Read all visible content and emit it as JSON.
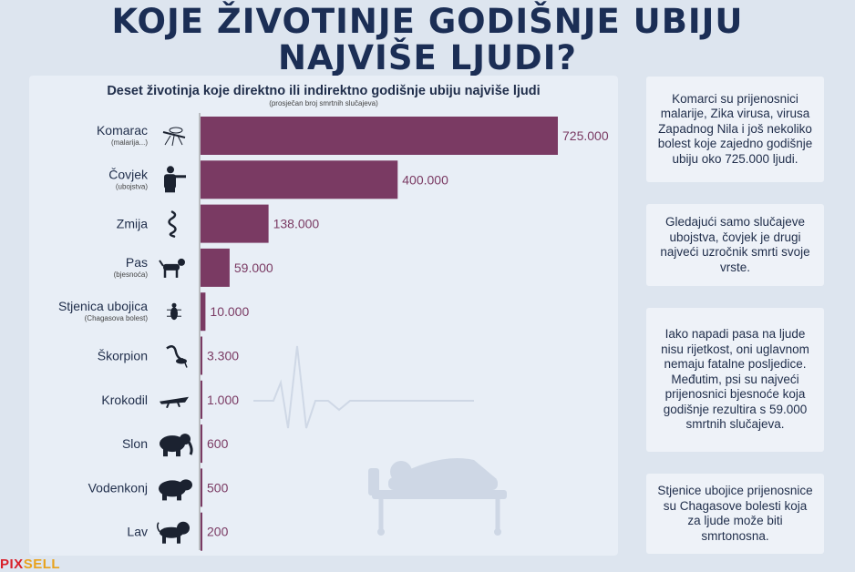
{
  "header": {
    "title_line1": "KOJE ŽIVOTINJE GODIŠNJE UBIJU",
    "title_line2": "NAJVIŠE LJUDI?"
  },
  "colors": {
    "bar": "#7a3a63",
    "value_text": "#7a3a63",
    "title": "#1b2e55",
    "axis": "#8a8a8a"
  },
  "chart_data": {
    "type": "bar",
    "orientation": "horizontal",
    "title": "Deset životinja koje direktno ili indirektno godišnje ubiju najviše ljudi",
    "subtitle": "(prosječan broj smrtnih slučajeva)",
    "categories": [
      "Komarac",
      "Čovjek",
      "Zmija",
      "Pas",
      "Stjenica ubojica",
      "Škorpion",
      "Krokodil",
      "Slon",
      "Vodenkonj",
      "Lav"
    ],
    "sublabels": [
      "(malarija...)",
      "(ubojstva)",
      "",
      "(bjesnoća)",
      "(Chagasova bolest)",
      "",
      "",
      "",
      "",
      ""
    ],
    "icons": [
      "mosquito-icon",
      "man-with-gun-icon",
      "snake-icon",
      "dog-icon",
      "bug-icon",
      "scorpion-icon",
      "crocodile-icon",
      "elephant-icon",
      "hippo-icon",
      "lion-icon"
    ],
    "values": [
      725000,
      400000,
      138000,
      59000,
      10000,
      3300,
      1000,
      600,
      500,
      200
    ],
    "value_labels": [
      "725.000",
      "400.000",
      "138.000",
      "59.000",
      "10.000",
      "3.300",
      "1.000",
      "600",
      "500",
      "200"
    ],
    "xlim": [
      0,
      725000
    ],
    "grid": false,
    "legend": "none"
  },
  "notes": [
    "Komarci su prijenosnici malarije, Zika virusa, virusa Zapadnog Nila i još nekoliko bolest koje zajedno godišnje ubiju oko 725.000 ljudi.",
    "Gledajući samo slučajeve ubojstva, čovjek je drugi najveći uzročnik smrti svoje vrste.",
    "Iako napadi pasa na ljude nisu rijetkost, oni uglavnom nemaju fatalne posljedice. Međutim, psi su najveći prijenosnici bjesnoće koja godišnje rezultira s 59.000 smrtnih slučajeva.",
    "Stjenice ubojice prijenosnice su Chagasove bolesti koja za ljude može biti smrtonosna."
  ],
  "logo": {
    "part1": "PIX",
    "part2": "SELL"
  }
}
